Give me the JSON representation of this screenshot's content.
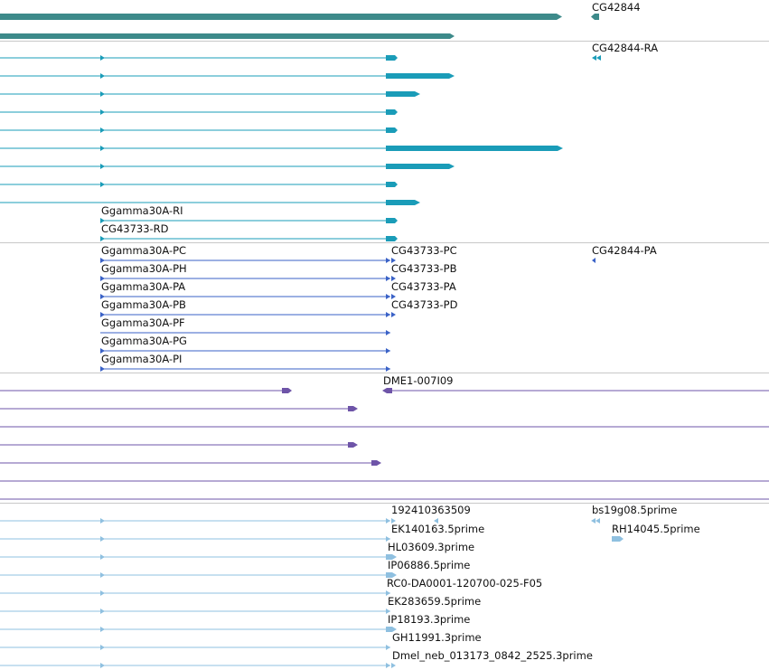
{
  "tracks": [
    {
      "name": "gene",
      "color": "#3d8a8a",
      "labels": [
        "CG42844"
      ]
    },
    {
      "name": "mrna",
      "color": "#1a9cb8",
      "labels": [
        "CG42844-RA",
        "Ggamma30A-RI",
        "CG43733-RD"
      ]
    },
    {
      "name": "protein",
      "color": "#3a62c7",
      "labels": [
        "Ggamma30A-PC",
        "CG43733-PC",
        "CG42844-PA",
        "Ggamma30A-PH",
        "CG43733-PB",
        "Ggamma30A-PA",
        "CG43733-PA",
        "Ggamma30A-PB",
        "CG43733-PD",
        "Ggamma30A-PF",
        "Ggamma30A-PG",
        "Ggamma30A-PI"
      ]
    },
    {
      "name": "aligned-clone",
      "color": "#6e54a8",
      "labels": [
        "DME1-007I09"
      ]
    },
    {
      "name": "est-alignment",
      "color": "#8fc0e0",
      "labels": [
        "192410363509",
        "bs19g08.5prime",
        "EK140163.5prime",
        "RH14045.5prime",
        "HL03609.3prime",
        "IP06886.5prime",
        "RC0-DA0001-120700-025-F05",
        "EK283659.5prime",
        "IP18193.3prime",
        "GH11991.3prime",
        "Dmel_neb_013173_0842_2525.3prime"
      ]
    }
  ]
}
